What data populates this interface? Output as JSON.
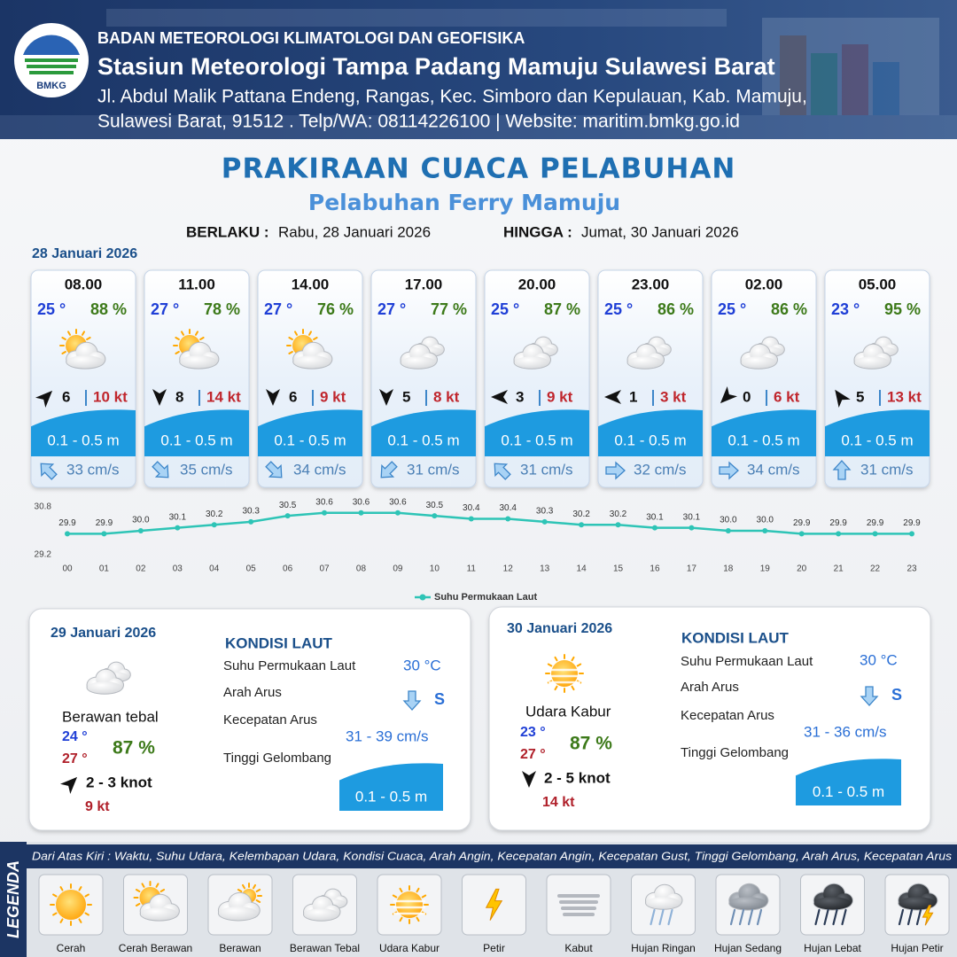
{
  "header": {
    "logo": "BMKG",
    "organization": "BADAN METEOROLOGI KLIMATOLOGI DAN GEOFISIKA",
    "station": "Stasiun Meteorologi Tampa Padang Mamuju Sulawesi Barat",
    "address": [
      "Jl. Abdul Malik Pattana Endeng, Rangas, Kec. Simboro dan Kepulauan, Kab. Mamuju,",
      "Sulawesi Barat, 91512 . Telp/WA: 08114226100 | Website: maritim.bmkg.go.id"
    ]
  },
  "title": "PRAKIRAAN CUACA PELABUHAN",
  "subtitle": "Pelabuhan Ferry Mamuju",
  "validity": {
    "from_label": "BERLAKU :",
    "from": "Rabu, 28 Januari 2026",
    "to_label": "HINGGA :",
    "to": "Jumat, 30 Januari 2026"
  },
  "forecast": {
    "date": "28 Januari 2026",
    "slots": [
      {
        "time": "08.00",
        "temperature": "25 °",
        "humidity": "88 %",
        "wind_speed": "6",
        "gust": "10 kt",
        "wave": "0.1 - 0.5 m",
        "current": "33 cm/s"
      },
      {
        "time": "11.00",
        "temperature": "27 °",
        "humidity": "78 %",
        "wind_speed": "8",
        "gust": "14 kt",
        "wave": "0.1 - 0.5 m",
        "current": "35 cm/s"
      },
      {
        "time": "14.00",
        "temperature": "27 °",
        "humidity": "76 %",
        "wind_speed": "6",
        "gust": "9 kt",
        "wave": "0.1 - 0.5 m",
        "current": "34 cm/s"
      },
      {
        "time": "17.00",
        "temperature": "27 °",
        "humidity": "77 %",
        "wind_speed": "5",
        "gust": "8 kt",
        "wave": "0.1 - 0.5 m",
        "current": "31 cm/s"
      },
      {
        "time": "20.00",
        "temperature": "25 °",
        "humidity": "87 %",
        "wind_speed": "3",
        "gust": "9 kt",
        "wave": "0.1 - 0.5 m",
        "current": "31 cm/s"
      },
      {
        "time": "23.00",
        "temperature": "25 °",
        "humidity": "86 %",
        "wind_speed": "1",
        "gust": "3 kt",
        "wave": "0.1 - 0.5 m",
        "current": "32 cm/s"
      },
      {
        "time": "02.00",
        "temperature": "25 °",
        "humidity": "86 %",
        "wind_speed": "0",
        "gust": "6 kt",
        "wave": "0.1 - 0.5 m",
        "current": "34 cm/s"
      },
      {
        "time": "05.00",
        "temperature": "23 °",
        "humidity": "95 %",
        "wind_speed": "5",
        "gust": "13 kt",
        "wave": "0.1 - 0.5 m",
        "current": "31 cm/s"
      }
    ]
  },
  "chart_data": {
    "type": "line",
    "categories": [
      "00",
      "01",
      "02",
      "03",
      "04",
      "05",
      "06",
      "07",
      "08",
      "09",
      "10",
      "11",
      "12",
      "13",
      "14",
      "15",
      "16",
      "17",
      "18",
      "19",
      "20",
      "21",
      "22",
      "23"
    ],
    "series": [
      {
        "name": "Suhu Permukaan Laut",
        "color": "#2ec4b6",
        "values": [
          29.9,
          29.9,
          30.0,
          30.1,
          30.2,
          30.3,
          30.5,
          30.6,
          30.6,
          30.6,
          30.5,
          30.4,
          30.4,
          30.3,
          30.2,
          30.2,
          30.1,
          30.1,
          30.0,
          30.0,
          29.9,
          29.9,
          29.9,
          29.9
        ],
        "value_labels": [
          "29.9",
          "29.9",
          "30.0",
          "30.1",
          "30.2",
          "30.3",
          "30.5",
          "30.6",
          "30.6",
          "30.6",
          "30.5",
          "30.4",
          "30.4",
          "30.3",
          "30.2",
          "30.2",
          "30.1",
          "30.1",
          "30.0",
          "30.0",
          "29.9",
          "29.9",
          "29.9",
          "29.9"
        ]
      }
    ],
    "ylim": [
      29.2,
      30.8
    ],
    "yticks": [
      29.2,
      30.8
    ],
    "legend": "bottom"
  },
  "days": [
    {
      "date": "29 Januari 2026",
      "condition": "Berawan tebal",
      "temp_min": "24 °",
      "temp_max": "27 °",
      "humidity": "87 %",
      "wind": "2  - 3 knot",
      "gust": "9 kt",
      "sea": {
        "heading": "KONDISI LAUT",
        "labels": [
          "Suhu Permukaan Laut",
          "Arah Arus",
          "Kecepatan Arus",
          "Tinggi Gelombang"
        ],
        "temperature": "30 °C",
        "current_direction": "S",
        "current_speed": "31  - 39 cm/s",
        "wave": "0.1 - 0.5 m"
      }
    },
    {
      "date": "30 Januari 2026",
      "condition": "Udara Kabur",
      "temp_min": "23 °",
      "temp_max": "27 °",
      "humidity": "87 %",
      "wind": "2  - 5 knot",
      "gust": "14 kt",
      "sea": {
        "heading": "KONDISI LAUT",
        "labels": [
          "Suhu Permukaan Laut",
          "Arah Arus",
          "Kecepatan Arus",
          "Tinggi Gelombang"
        ],
        "temperature": "30 °C",
        "current_direction": "S",
        "current_speed": "31  - 36 cm/s",
        "wave": "0.1 - 0.5 m"
      }
    }
  ],
  "legend": {
    "title": "LEGENDA",
    "description": "Dari Atas Kiri : Waktu, Suhu Udara, Kelembapan Udara, Kondisi Cuaca, Arah Angin, Kecepatan Angin, Kecepatan Gust, Tinggi Gelombang, Arah Arus, Kecepatan Arus",
    "items": [
      "Cerah",
      "Cerah Berawan",
      "Berawan",
      "Berawan Tebal",
      "Udara Kabur",
      "Petir",
      "Kabut",
      "Hujan Ringan",
      "Hujan Sedang",
      "Hujan Lebat",
      "Hujan Petir"
    ]
  }
}
